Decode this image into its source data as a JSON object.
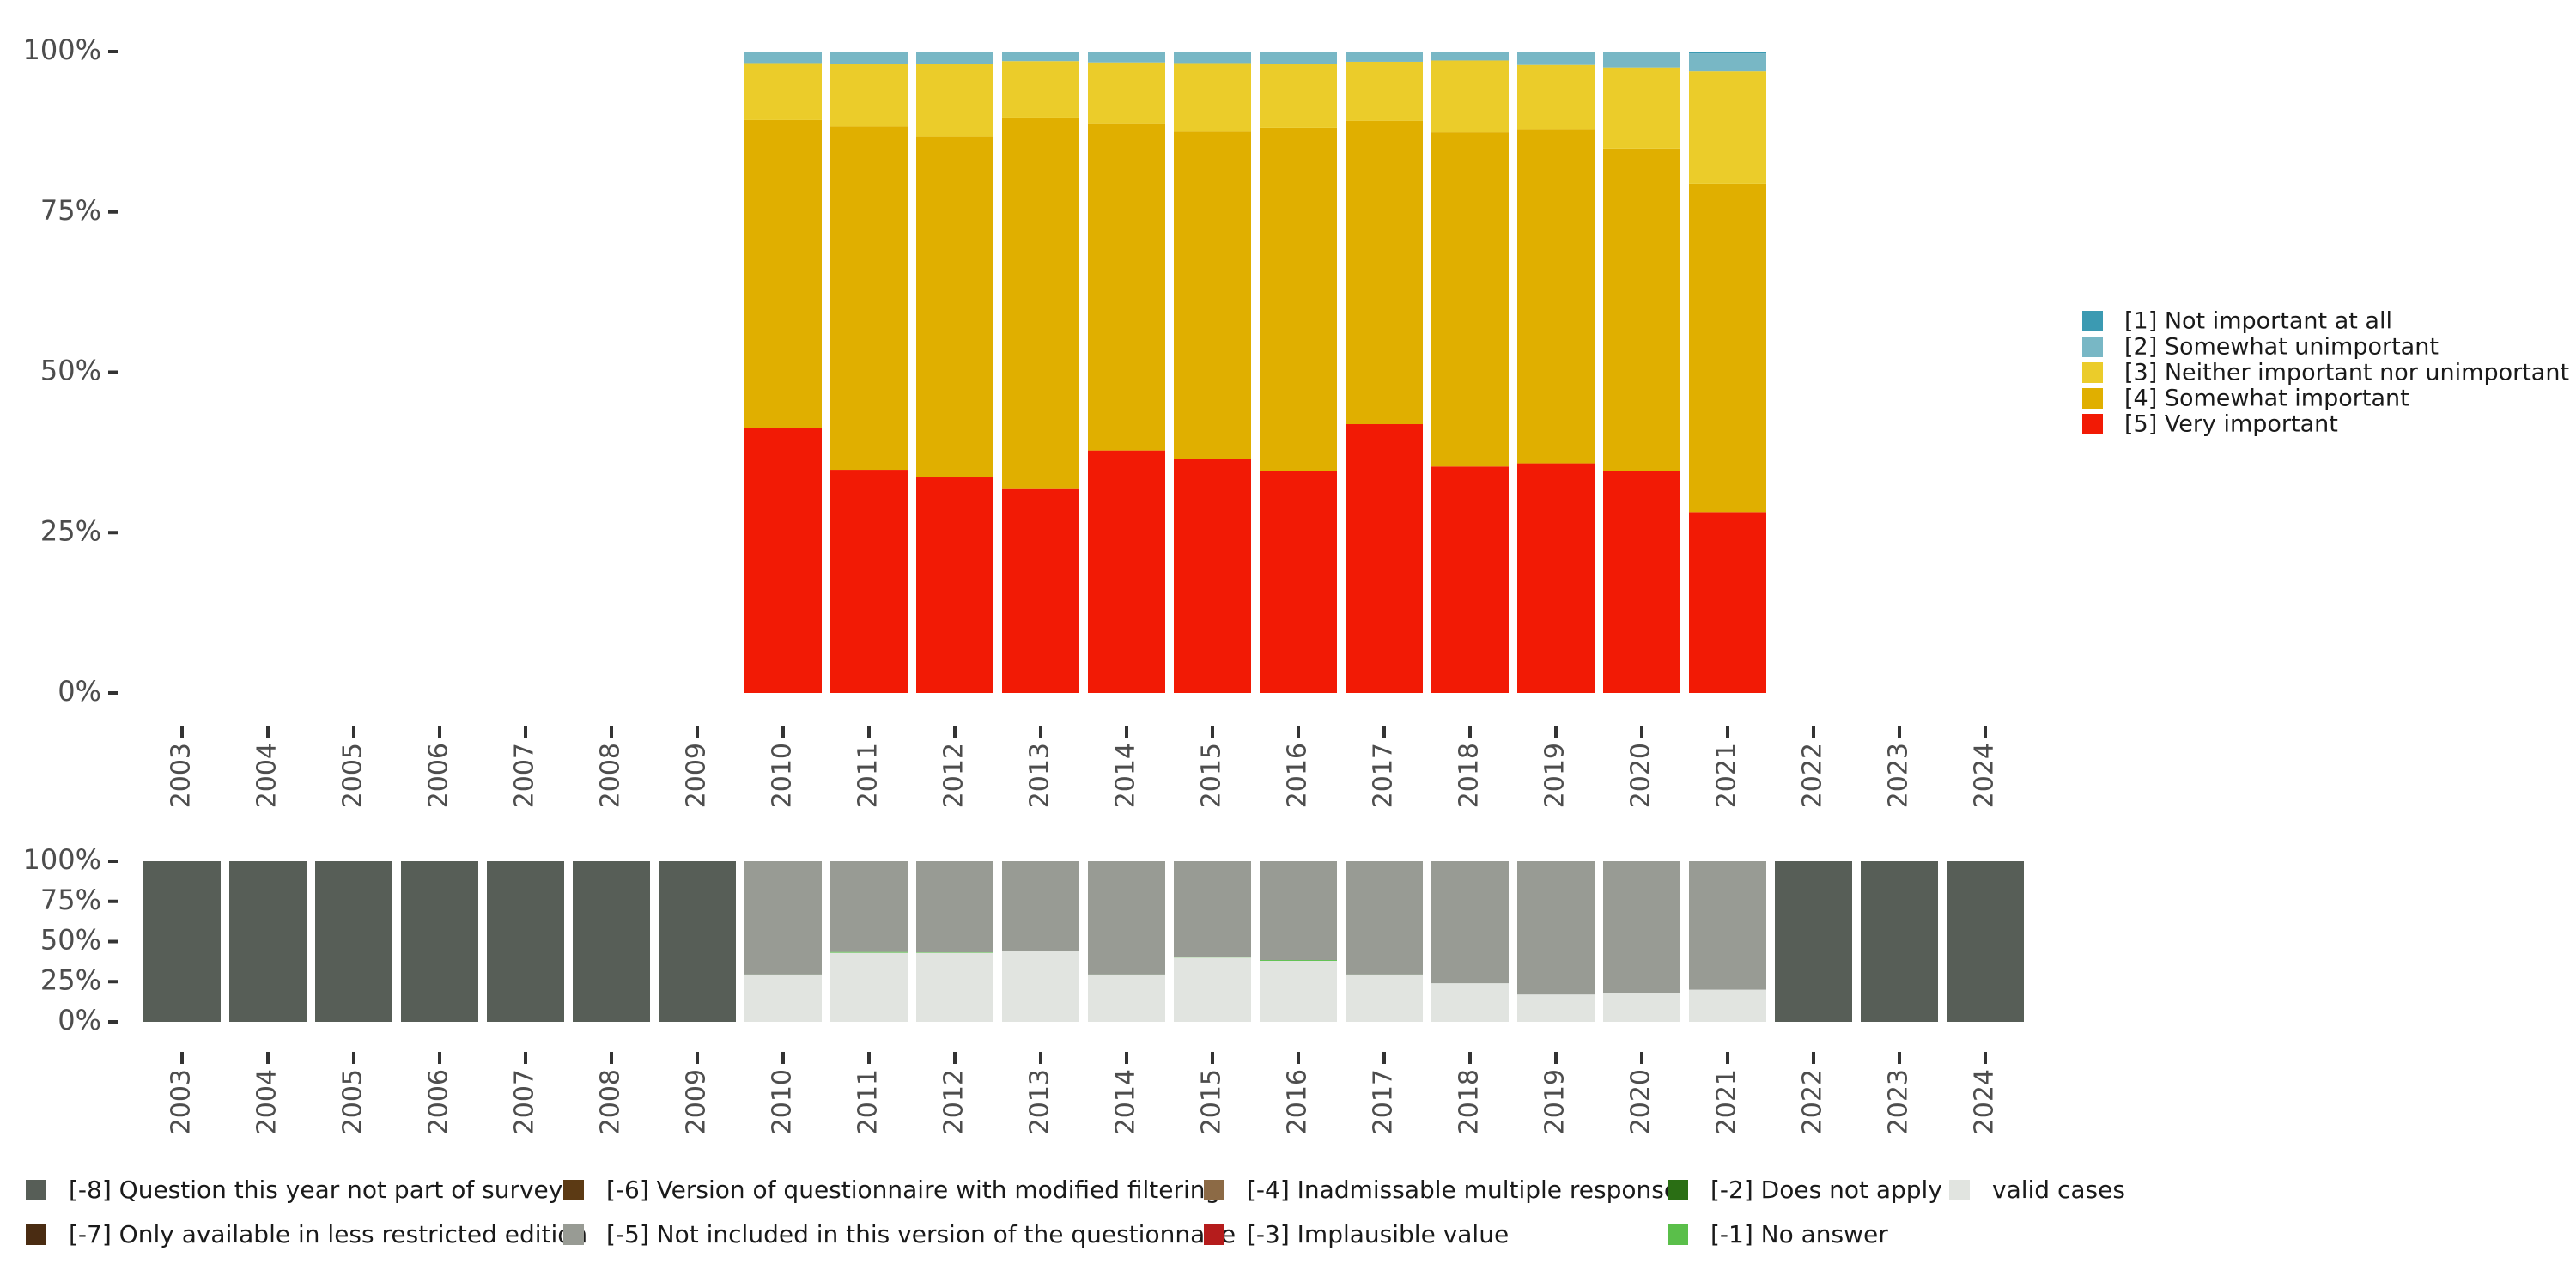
{
  "chart_data": [
    {
      "type": "bar",
      "stacked": true,
      "role": "main-distribution",
      "x": [
        "2003",
        "2004",
        "2005",
        "2006",
        "2007",
        "2008",
        "2009",
        "2010",
        "2011",
        "2012",
        "2013",
        "2014",
        "2015",
        "2016",
        "2017",
        "2018",
        "2019",
        "2020",
        "2021",
        "2022",
        "2023",
        "2024"
      ],
      "y_tick_labels": [
        "0%",
        "25%",
        "50%",
        "75%",
        "100%"
      ],
      "ylim": [
        0,
        100
      ],
      "legend_position": "right",
      "series": [
        {
          "name": "[5] Very important",
          "color": "#f21a05",
          "values": [
            null,
            null,
            null,
            null,
            null,
            null,
            null,
            41.3,
            34.8,
            33.6,
            31.9,
            37.8,
            36.5,
            34.6,
            41.9,
            35.3,
            35.8,
            34.6,
            28.2,
            null,
            null,
            null
          ]
        },
        {
          "name": "[4] Somewhat important",
          "color": "#e0af00",
          "values": [
            null,
            null,
            null,
            null,
            null,
            null,
            null,
            48.0,
            53.5,
            53.2,
            57.8,
            51.0,
            51.0,
            53.5,
            47.3,
            52.1,
            52.1,
            50.3,
            51.2,
            null,
            null,
            null
          ]
        },
        {
          "name": "[3] Neither important nor unimportant",
          "color": "#ebcc2a",
          "values": [
            null,
            null,
            null,
            null,
            null,
            null,
            null,
            8.9,
            9.7,
            11.3,
            8.8,
            9.5,
            10.7,
            10.0,
            9.2,
            11.2,
            10.0,
            12.6,
            17.5,
            null,
            null,
            null
          ]
        },
        {
          "name": "[2] Somewhat unimportant",
          "color": "#78b7c5",
          "values": [
            null,
            null,
            null,
            null,
            null,
            null,
            null,
            1.8,
            2.0,
            1.9,
            1.5,
            1.7,
            1.8,
            1.9,
            1.6,
            1.4,
            2.1,
            2.5,
            2.8,
            null,
            null,
            null
          ]
        },
        {
          "name": "[1] Not important at all",
          "color": "#3b9ab2",
          "values": [
            null,
            null,
            null,
            null,
            null,
            null,
            null,
            0.0,
            0.0,
            0.0,
            0.0,
            0.0,
            0.0,
            0.0,
            0.0,
            0.0,
            0.0,
            0.0,
            0.3,
            null,
            null,
            null
          ]
        }
      ]
    },
    {
      "type": "bar",
      "stacked": true,
      "role": "missing-overview",
      "x": [
        "2003",
        "2004",
        "2005",
        "2006",
        "2007",
        "2008",
        "2009",
        "2010",
        "2011",
        "2012",
        "2013",
        "2014",
        "2015",
        "2016",
        "2017",
        "2018",
        "2019",
        "2020",
        "2021",
        "2022",
        "2023",
        "2024"
      ],
      "y_tick_labels": [
        "0%",
        "25%",
        "50%",
        "75%",
        "100%"
      ],
      "ylim": [
        0,
        100
      ],
      "legend_position": "bottom",
      "series": [
        {
          "name": "valid cases",
          "color": "#e1e4e0",
          "values": [
            0,
            0,
            0,
            0,
            0,
            0,
            0,
            29,
            43,
            43,
            44,
            29,
            40,
            38,
            29,
            24,
            17,
            18,
            20,
            0,
            0,
            0
          ]
        },
        {
          "name": "[-1] No answer",
          "color": "#5abf4a",
          "values": [
            0,
            0,
            0,
            0,
            0,
            0,
            0,
            0.5,
            0.5,
            0.3,
            0.3,
            0.5,
            0.5,
            0.5,
            0.5,
            0,
            0,
            0,
            0,
            0,
            0,
            0
          ]
        },
        {
          "name": "[-5] Not included in this version of the questionnaire",
          "color": "#989b94",
          "values": [
            0,
            0,
            0,
            0,
            0,
            0,
            0,
            70.5,
            56.5,
            56.7,
            55.7,
            70.5,
            59.5,
            61.5,
            70.5,
            76,
            83,
            82,
            80,
            0,
            0,
            0
          ]
        },
        {
          "name": "[-8] Question this year not part of survey",
          "color": "#575e57",
          "values": [
            100,
            100,
            100,
            100,
            100,
            100,
            100,
            0,
            0,
            0,
            0,
            0,
            0,
            0,
            0,
            0,
            0,
            0,
            0,
            100,
            100,
            100
          ]
        }
      ],
      "legend": [
        {
          "label": "[-8] Question this year not part of survey",
          "color": "#575e57"
        },
        {
          "label": "[-7] Only available in less restricted edition",
          "color": "#4a2c12"
        },
        {
          "label": "[-6] Version of questionnaire with modified filtering",
          "color": "#5c3a14"
        },
        {
          "label": "[-5] Not included in this version of the questionnaire",
          "color": "#989b94"
        },
        {
          "label": "[-4] Inadmissable multiple response",
          "color": "#8c6a45"
        },
        {
          "label": "[-3] Implausible value",
          "color": "#b51c1c"
        },
        {
          "label": "[-2] Does not apply",
          "color": "#2a6e14"
        },
        {
          "label": "[-1] No answer",
          "color": "#5abf4a"
        },
        {
          "label": "valid cases",
          "color": "#e1e4e0"
        }
      ]
    }
  ]
}
